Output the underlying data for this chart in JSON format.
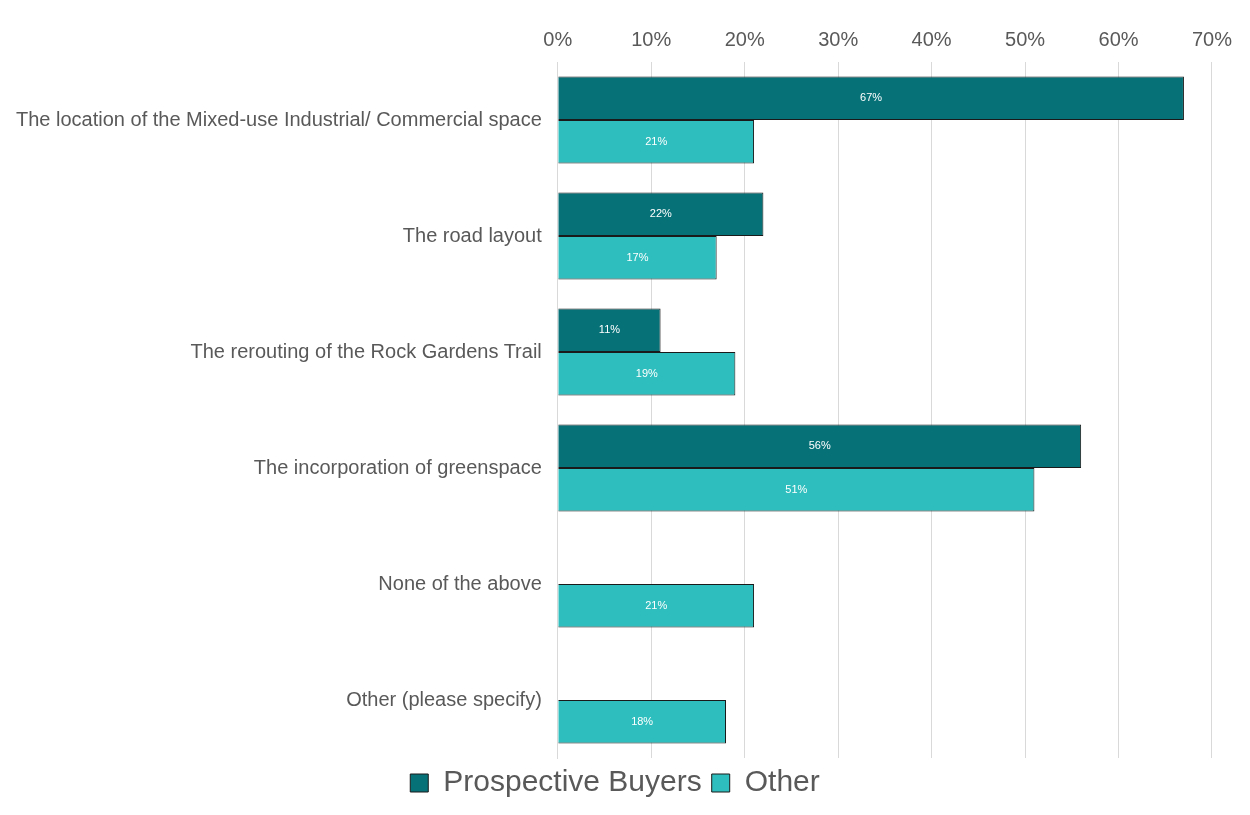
{
  "chart_data": {
    "type": "bar",
    "orientation": "horizontal",
    "categories": [
      "The location of the Mixed-use Industrial/ Commercial space",
      "The road layout",
      "The rerouting of the Rock Gardens Trail",
      "The incorporation of greenspace",
      "None of the above",
      "Other (please specify)"
    ],
    "series": [
      {
        "name": "Prospective Buyers",
        "color": "#077178",
        "values": [
          67,
          22,
          11,
          56,
          null,
          null
        ],
        "value_labels": [
          "67%",
          "22%",
          "11%",
          "56%",
          null,
          null
        ]
      },
      {
        "name": "Other",
        "color": "#2ebebd",
        "values": [
          21,
          17,
          19,
          51,
          21,
          18
        ],
        "value_labels": [
          "21%",
          "17%",
          "19%",
          "51%",
          "21%",
          "18%"
        ]
      }
    ],
    "xlim": [
      0,
      70
    ],
    "xticks": [
      {
        "value": 0,
        "label": "0%"
      },
      {
        "value": 10,
        "label": "10%"
      },
      {
        "value": 20,
        "label": "20%"
      },
      {
        "value": 30,
        "label": "30%"
      },
      {
        "value": 40,
        "label": "40%"
      },
      {
        "value": 50,
        "label": "50%"
      },
      {
        "value": 60,
        "label": "60%"
      },
      {
        "value": 70,
        "label": "70%"
      }
    ],
    "grid": "x",
    "legend": "bottom"
  }
}
